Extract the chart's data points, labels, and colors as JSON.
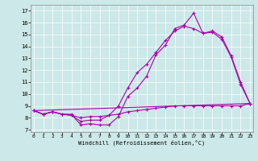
{
  "xlabel": "Windchill (Refroidissement éolien,°C)",
  "background_color": "#cce8e8",
  "line_color": "#aa00aa",
  "x_ticks": [
    0,
    1,
    2,
    3,
    4,
    5,
    6,
    7,
    8,
    9,
    10,
    11,
    12,
    13,
    14,
    15,
    16,
    17,
    18,
    19,
    20,
    21,
    22,
    23
  ],
  "y_ticks": [
    7,
    8,
    9,
    10,
    11,
    12,
    13,
    14,
    15,
    16,
    17
  ],
  "ylim": [
    6.8,
    17.5
  ],
  "xlim": [
    -0.3,
    23.3
  ],
  "series1_x": [
    0,
    1,
    2,
    3,
    4,
    5,
    6,
    7,
    8,
    9,
    10,
    11,
    12,
    13,
    14,
    15,
    16,
    17,
    18,
    19,
    20,
    21,
    22,
    23
  ],
  "series1_y": [
    8.6,
    8.3,
    8.5,
    8.3,
    8.3,
    7.4,
    7.5,
    7.4,
    7.4,
    8.1,
    9.8,
    10.5,
    11.5,
    13.3,
    14.1,
    15.5,
    15.8,
    16.8,
    15.1,
    15.3,
    14.8,
    13.2,
    11.0,
    9.2
  ],
  "series2_x": [
    0,
    1,
    2,
    3,
    4,
    5,
    6,
    7,
    8,
    9,
    10,
    11,
    12,
    13,
    14,
    15,
    16,
    17,
    18,
    19,
    20,
    21,
    22,
    23
  ],
  "series2_y": [
    8.6,
    8.3,
    8.5,
    8.3,
    8.2,
    7.7,
    7.8,
    7.8,
    8.2,
    9.0,
    10.5,
    11.8,
    12.5,
    13.5,
    14.5,
    15.3,
    15.7,
    15.5,
    15.1,
    15.2,
    14.6,
    13.1,
    10.8,
    9.2
  ],
  "series3_x": [
    0,
    23
  ],
  "series3_y": [
    8.6,
    9.2
  ],
  "series4_x": [
    0,
    1,
    2,
    3,
    4,
    5,
    6,
    7,
    8,
    9,
    10,
    11,
    12,
    13,
    14,
    15,
    16,
    17,
    18,
    19,
    20,
    21,
    22,
    23
  ],
  "series4_y": [
    8.6,
    8.3,
    8.5,
    8.3,
    8.2,
    8.0,
    8.1,
    8.1,
    8.2,
    8.3,
    8.5,
    8.6,
    8.7,
    8.8,
    8.9,
    9.0,
    9.0,
    9.0,
    9.0,
    9.0,
    9.0,
    9.0,
    9.0,
    9.2
  ]
}
